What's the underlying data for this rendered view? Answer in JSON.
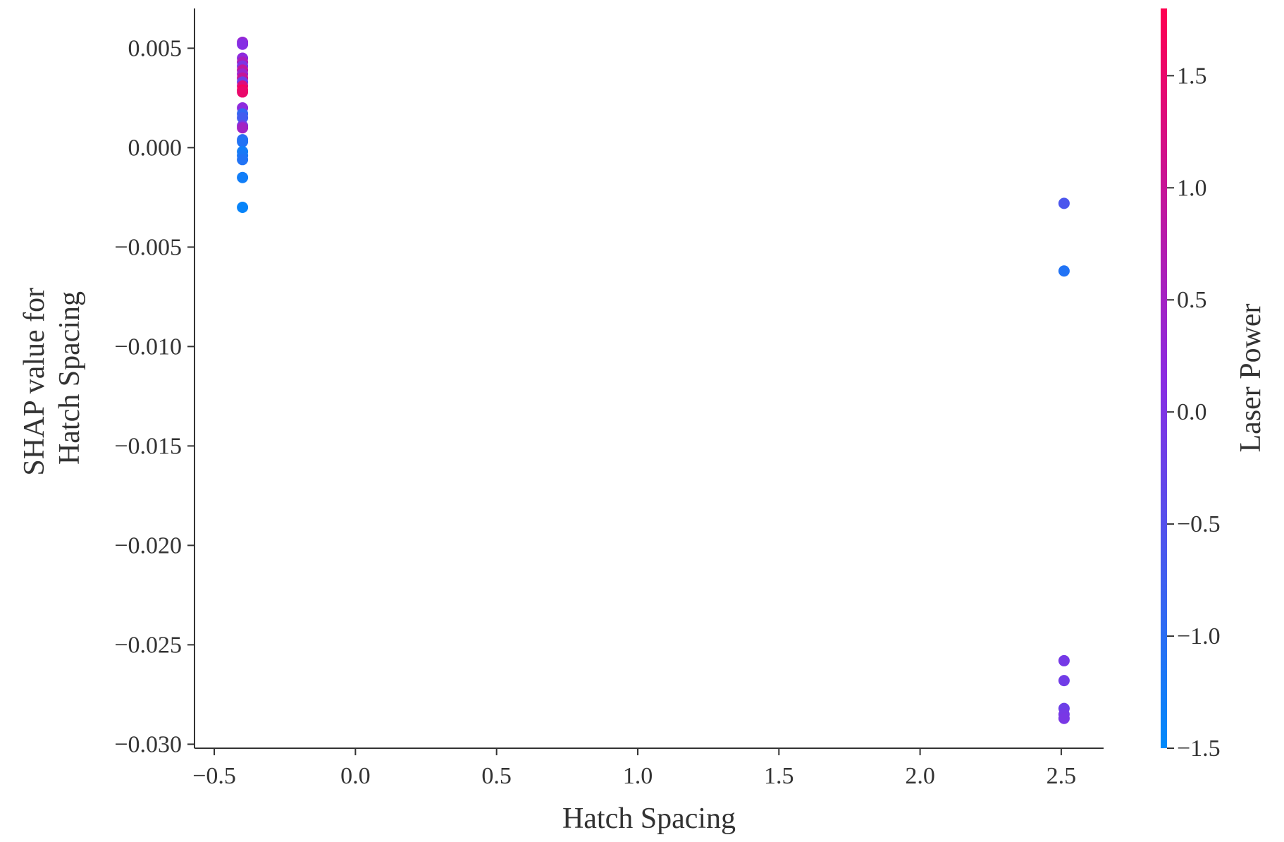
{
  "chart_data": {
    "type": "scatter",
    "xlabel": "Hatch Spacing",
    "ylabel_lines": [
      "SHAP value for",
      "Hatch Spacing"
    ],
    "xlim": [
      -0.57,
      2.65
    ],
    "ylim": [
      -0.0302,
      0.007
    ],
    "x_ticks": [
      -0.5,
      0.0,
      0.5,
      1.0,
      1.5,
      2.0,
      2.5
    ],
    "x_tick_labels": [
      "−0.5",
      "0.0",
      "0.5",
      "1.0",
      "1.5",
      "2.0",
      "2.5"
    ],
    "y_ticks": [
      0.005,
      0.0,
      -0.005,
      -0.01,
      -0.015,
      -0.02,
      -0.025,
      -0.03
    ],
    "y_tick_labels": [
      "0.005",
      "0.000",
      "−0.005",
      "−0.010",
      "−0.015",
      "−0.020",
      "−0.025",
      "−0.030"
    ],
    "colorbar": {
      "label": "Laser Power",
      "range": [
        -1.5,
        1.8
      ],
      "ticks": [
        1.5,
        1.0,
        0.5,
        0.0,
        -0.5,
        -1.0,
        -1.5
      ],
      "tick_labels": [
        "1.5",
        "1.0",
        "0.5",
        "0.0",
        "−0.5",
        "−1.0",
        "−1.5"
      ],
      "colormap": [
        "#008afb",
        "#8a2be2",
        "#ff0051"
      ]
    },
    "points": [
      {
        "x": -0.4,
        "y": 0.0053,
        "c": 0.3
      },
      {
        "x": -0.4,
        "y": 0.0052,
        "c": 0.1
      },
      {
        "x": -0.4,
        "y": 0.0045,
        "c": 0.2
      },
      {
        "x": -0.4,
        "y": 0.0043,
        "c": 0.6
      },
      {
        "x": -0.4,
        "y": 0.0041,
        "c": 0.0
      },
      {
        "x": -0.4,
        "y": 0.0039,
        "c": 0.9
      },
      {
        "x": -0.4,
        "y": 0.0037,
        "c": 0.4
      },
      {
        "x": -0.4,
        "y": 0.0035,
        "c": 1.0
      },
      {
        "x": -0.4,
        "y": 0.0033,
        "c": -0.2
      },
      {
        "x": -0.4,
        "y": 0.0031,
        "c": 1.3
      },
      {
        "x": -0.4,
        "y": 0.0029,
        "c": 1.7
      },
      {
        "x": -0.4,
        "y": 0.0028,
        "c": 1.5
      },
      {
        "x": -0.4,
        "y": 0.002,
        "c": 0.2
      },
      {
        "x": -0.4,
        "y": 0.0017,
        "c": -0.9
      },
      {
        "x": -0.4,
        "y": 0.0015,
        "c": -0.7
      },
      {
        "x": -0.4,
        "y": 0.0011,
        "c": -0.1
      },
      {
        "x": -0.4,
        "y": 0.001,
        "c": 0.5
      },
      {
        "x": -0.4,
        "y": 0.0004,
        "c": -1.0
      },
      {
        "x": -0.4,
        "y": 0.0003,
        "c": -1.1
      },
      {
        "x": -0.4,
        "y": -0.0002,
        "c": -1.3
      },
      {
        "x": -0.4,
        "y": -0.0004,
        "c": -1.2
      },
      {
        "x": -0.4,
        "y": -0.0006,
        "c": -1.1
      },
      {
        "x": -0.4,
        "y": -0.0015,
        "c": -1.3
      },
      {
        "x": -0.4,
        "y": -0.003,
        "c": -1.4
      },
      {
        "x": 2.51,
        "y": -0.0028,
        "c": -0.6
      },
      {
        "x": 2.51,
        "y": -0.0062,
        "c": -1.1
      },
      {
        "x": 2.51,
        "y": -0.0258,
        "c": -0.1
      },
      {
        "x": 2.51,
        "y": -0.0268,
        "c": -0.15
      },
      {
        "x": 2.51,
        "y": -0.0282,
        "c": -0.2
      },
      {
        "x": 2.51,
        "y": -0.0285,
        "c": -0.1
      },
      {
        "x": 2.51,
        "y": -0.0287,
        "c": -0.05
      }
    ]
  }
}
